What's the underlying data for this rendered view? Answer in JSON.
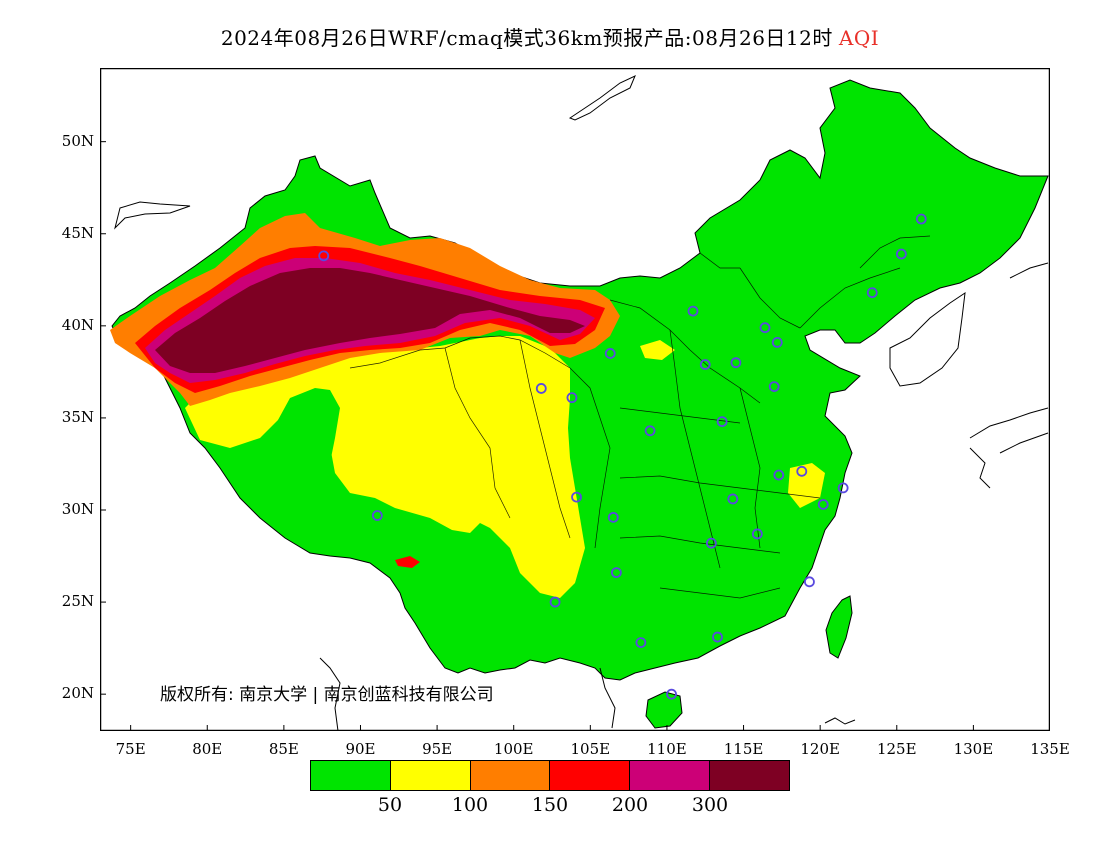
{
  "title": {
    "prefix": "2024年08月26日WRF/cmaq模式36km预报产品:08月26日12时",
    "metric": "AQI"
  },
  "axes": {
    "lat_labels": [
      "50N",
      "45N",
      "40N",
      "35N",
      "30N",
      "25N",
      "20N"
    ],
    "lat_values": [
      50,
      45,
      40,
      35,
      30,
      25,
      20
    ],
    "lon_labels": [
      "75E",
      "80E",
      "85E",
      "90E",
      "95E",
      "100E",
      "105E",
      "110E",
      "115E",
      "120E",
      "125E",
      "130E",
      "135E"
    ],
    "lon_values": [
      75,
      80,
      85,
      90,
      95,
      100,
      105,
      110,
      115,
      120,
      125,
      130,
      135
    ],
    "lon_range": [
      73,
      135
    ],
    "lat_range": [
      18,
      54
    ]
  },
  "legend": {
    "colors": [
      "#00e400",
      "#ffff00",
      "#ff7e00",
      "#ff0000",
      "#cc0077",
      "#7e0023"
    ],
    "labels": [
      "50",
      "100",
      "150",
      "200",
      "300"
    ]
  },
  "credit": "版权所有: 南京大学 | 南京创蓝科技有限公司",
  "sea_color": "#ffffff",
  "border_color": "#000000",
  "station_color": "#5a4adf",
  "stations": [
    {
      "lon": 87.6,
      "lat": 43.8
    },
    {
      "lon": 91.1,
      "lat": 29.7
    },
    {
      "lon": 101.8,
      "lat": 36.6
    },
    {
      "lon": 103.8,
      "lat": 36.1
    },
    {
      "lon": 106.3,
      "lat": 38.5
    },
    {
      "lon": 111.7,
      "lat": 40.8
    },
    {
      "lon": 112.5,
      "lat": 37.9
    },
    {
      "lon": 114.5,
      "lat": 38.0
    },
    {
      "lon": 116.4,
      "lat": 39.9
    },
    {
      "lon": 117.2,
      "lat": 39.1
    },
    {
      "lon": 123.4,
      "lat": 41.8
    },
    {
      "lon": 125.3,
      "lat": 43.9
    },
    {
      "lon": 126.6,
      "lat": 45.8
    },
    {
      "lon": 117.0,
      "lat": 36.7
    },
    {
      "lon": 113.6,
      "lat": 34.8
    },
    {
      "lon": 108.9,
      "lat": 34.3
    },
    {
      "lon": 104.1,
      "lat": 30.7
    },
    {
      "lon": 106.5,
      "lat": 29.6
    },
    {
      "lon": 106.7,
      "lat": 26.6
    },
    {
      "lon": 102.7,
      "lat": 25.0
    },
    {
      "lon": 108.3,
      "lat": 22.8
    },
    {
      "lon": 113.3,
      "lat": 23.1
    },
    {
      "lon": 110.3,
      "lat": 20.0
    },
    {
      "lon": 112.9,
      "lat": 28.2
    },
    {
      "lon": 114.3,
      "lat": 30.6
    },
    {
      "lon": 115.9,
      "lat": 28.7
    },
    {
      "lon": 117.3,
      "lat": 31.9
    },
    {
      "lon": 118.8,
      "lat": 32.1
    },
    {
      "lon": 120.2,
      "lat": 30.3
    },
    {
      "lon": 121.5,
      "lat": 31.2
    },
    {
      "lon": 119.3,
      "lat": 26.1
    }
  ]
}
